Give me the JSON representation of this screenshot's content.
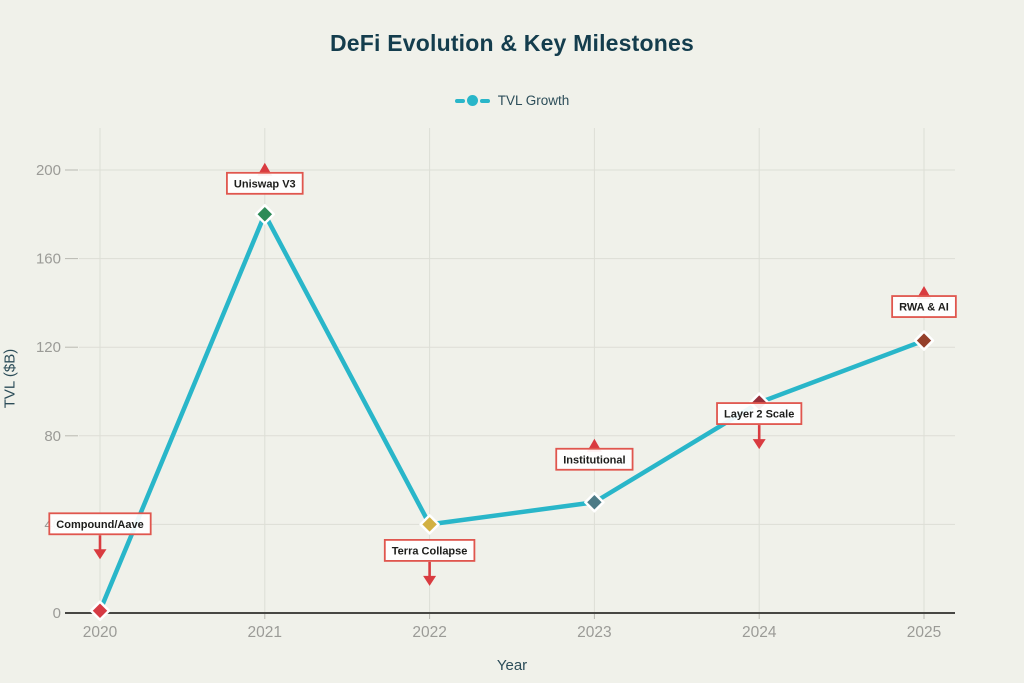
{
  "chart_data": {
    "type": "line",
    "title": "DeFi Evolution & Key Milestones",
    "xlabel": "Year",
    "ylabel": "TVL ($B)",
    "x": [
      2020,
      2021,
      2022,
      2023,
      2024,
      2025
    ],
    "series": [
      {
        "name": "TVL Growth",
        "color": "#29b6c9",
        "values": [
          1,
          180,
          40,
          50,
          95,
          123
        ]
      }
    ],
    "ylim": [
      0,
      200
    ],
    "yticks": [
      0,
      40,
      80,
      120,
      160,
      200
    ],
    "grid": true,
    "legend_position": "top-center",
    "marker_shape": "diamond",
    "point_colors": [
      "#d63a44",
      "#2e8b57",
      "#d2b143",
      "#4d7b87",
      "#972e3a",
      "#95402b"
    ],
    "annotations": [
      {
        "x": 2020,
        "label": "Compound/Aave",
        "arrow": "down",
        "box_dy": -87
      },
      {
        "x": 2021,
        "label": "Uniswap V3",
        "arrow": "up",
        "box_dy": -31
      },
      {
        "x": 2022,
        "label": "Terra Collapse",
        "arrow": "down",
        "box_dy": 26
      },
      {
        "x": 2023,
        "label": "Institutional",
        "arrow": "up",
        "box_dy": -43
      },
      {
        "x": 2024,
        "label": "Layer 2 Scale",
        "arrow": "down",
        "box_dy": 11
      },
      {
        "x": 2025,
        "label": "RWA & AI",
        "arrow": "up",
        "box_dy": -34
      }
    ],
    "colors": {
      "background": "#f0f1ea",
      "title": "#143d4d",
      "axis_title": "#2c4d59",
      "tick_label": "#9b9b97",
      "gridline": "#ddded6",
      "tick_mark": "#b9b9b1",
      "axis_line": "#474743",
      "line": "#29b6c9",
      "marker_outline": "#ffffff",
      "annotation_border": "#e0564e",
      "annotation_bg": "#ffffff",
      "annotation_text": "#1d1d1b",
      "arrow": "#d93b40"
    }
  }
}
